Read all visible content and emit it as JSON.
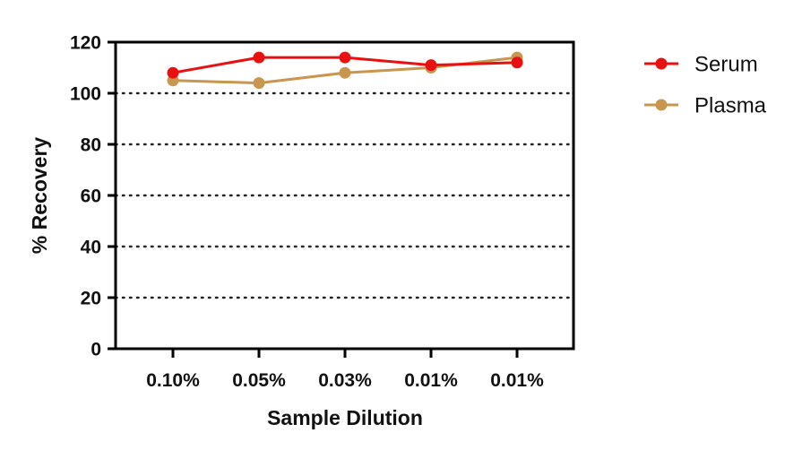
{
  "chart_data": {
    "type": "line",
    "title": "",
    "xlabel": "Sample Dilution",
    "ylabel": "% Recovery",
    "categories": [
      "0.10%",
      "0.05%",
      "0.03%",
      "0.01%",
      "0.01%"
    ],
    "ylim": [
      0,
      120
    ],
    "yticks": [
      0,
      20,
      40,
      60,
      80,
      100,
      120
    ],
    "grid": "horizontal dotted at 20-100",
    "legend": "right",
    "series": [
      {
        "name": "Serum",
        "values": [
          108,
          114,
          114,
          111,
          112
        ],
        "color": "#e81010"
      },
      {
        "name": "Plasma",
        "values": [
          105,
          104,
          108,
          110,
          114
        ],
        "color": "#c8964e"
      }
    ]
  }
}
